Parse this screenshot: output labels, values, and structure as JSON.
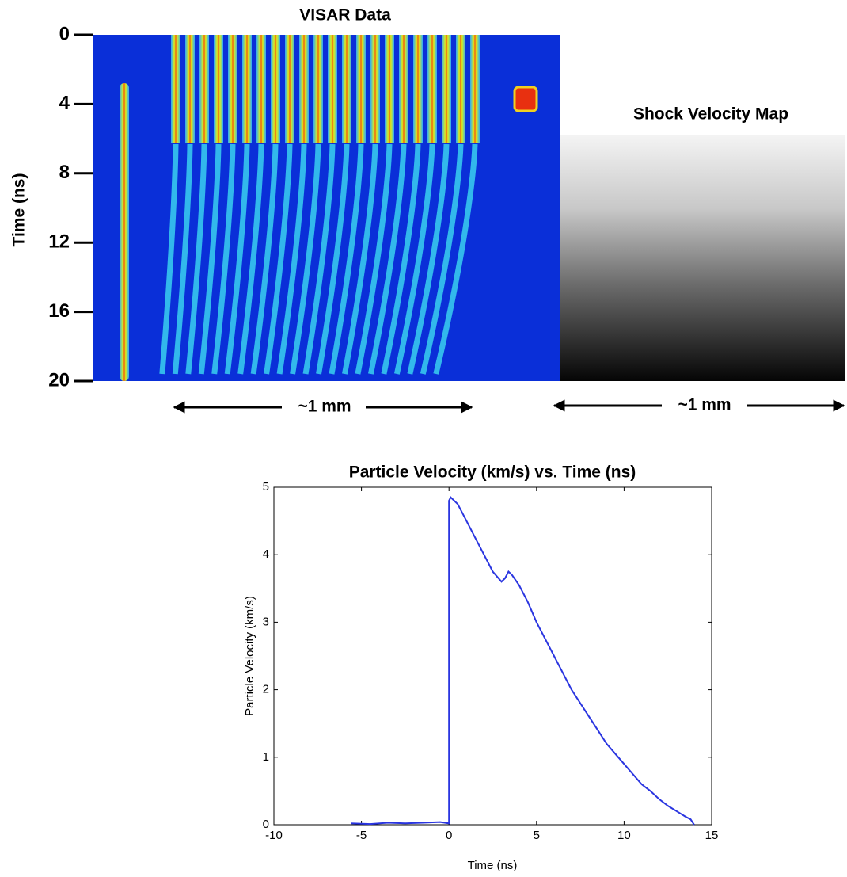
{
  "chart_data": [
    {
      "type": "image",
      "title": "VISAR Data",
      "y_label": "Time (ns)",
      "ylim": [
        0,
        20
      ],
      "yticks": [
        0,
        4,
        8,
        12,
        16,
        20
      ],
      "scale_label": "~1 mm"
    },
    {
      "type": "image",
      "title": "Shock Velocity Map",
      "scale_label": "~1 mm"
    },
    {
      "type": "line",
      "title": "Particle Velocity (km/s) vs. Time (ns)",
      "x_label": "Time (ns)",
      "y_label": "Particle Velocity (km/s)",
      "xlim": [
        -10,
        15
      ],
      "xticks": [
        -10,
        -5,
        0,
        5,
        10,
        15
      ],
      "ylim": [
        0,
        5
      ],
      "yticks": [
        0,
        1,
        2,
        3,
        4,
        5
      ],
      "series": [
        {
          "color": "#2a35e0",
          "x": [
            -5.6,
            -4.5,
            -3.5,
            -2.5,
            -1.5,
            -0.5,
            0,
            0,
            0.1,
            0.5,
            1,
            1.5,
            2,
            2.5,
            3,
            3.2,
            3.4,
            3.6,
            4,
            4.5,
            5,
            5.5,
            6,
            6.5,
            7,
            7.5,
            8,
            8.5,
            9,
            9.5,
            10,
            10.5,
            11,
            11.5,
            12,
            12.5,
            13,
            13.5,
            13.8,
            14
          ],
          "values": [
            0.02,
            0.01,
            0.03,
            0.02,
            0.03,
            0.04,
            0.02,
            4.8,
            4.85,
            4.75,
            4.5,
            4.25,
            4.0,
            3.75,
            3.6,
            3.65,
            3.75,
            3.7,
            3.55,
            3.3,
            3.0,
            2.75,
            2.5,
            2.25,
            2.0,
            1.8,
            1.6,
            1.4,
            1.2,
            1.05,
            0.9,
            0.75,
            0.6,
            0.5,
            0.38,
            0.28,
            0.2,
            0.12,
            0.08,
            0.0
          ]
        }
      ]
    }
  ]
}
